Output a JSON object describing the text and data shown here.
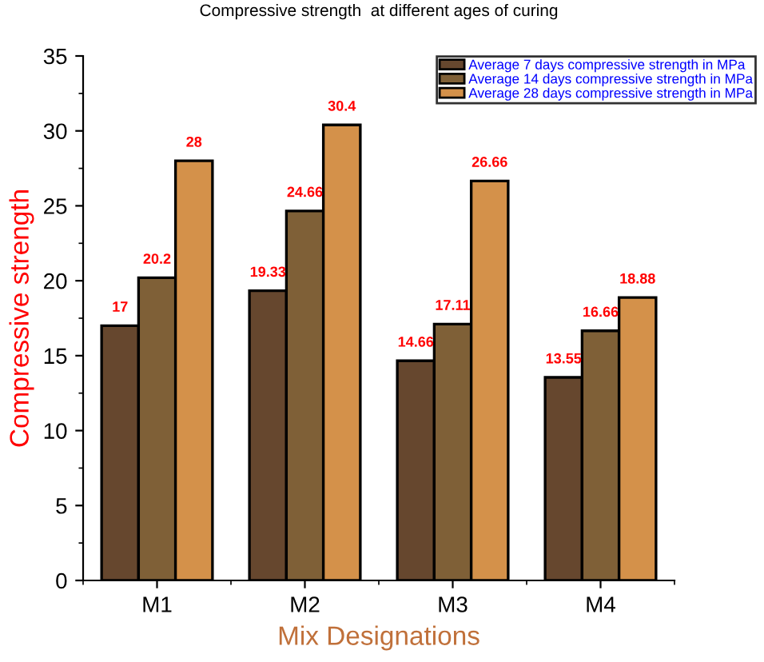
{
  "chart_data": {
    "type": "bar",
    "title": "Compressive strength  at different ages of curing",
    "xlabel": "Mix Designations",
    "ylabel": "Compressive strength",
    "categories": [
      "M1",
      "M2",
      "M3",
      "M4"
    ],
    "series": [
      {
        "name": "Average 7 days compressive strength in MPa",
        "color": "#66472e",
        "values": [
          17,
          19.33,
          14.66,
          13.55
        ]
      },
      {
        "name": "Average 14 days compressive strength in MPa",
        "color": "#7f6037",
        "values": [
          20.2,
          24.66,
          17.11,
          16.66
        ]
      },
      {
        "name": "Average 28 days compressive strength in MPa",
        "color": "#d4914a",
        "values": [
          28,
          30.4,
          26.66,
          18.88
        ]
      }
    ],
    "ylim": [
      0,
      35
    ],
    "yticks": [
      0,
      5,
      10,
      15,
      20,
      25,
      30,
      35
    ],
    "grid": false,
    "legend": "top right",
    "data_labels": true
  }
}
